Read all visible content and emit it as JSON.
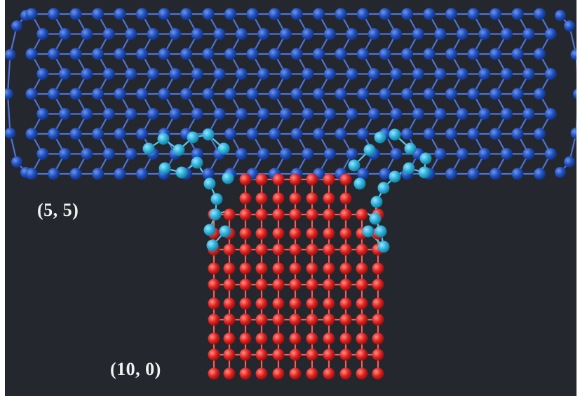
{
  "labels": {
    "armchair_tube": "(5, 5)",
    "zigzag_tube": "(10, 0)"
  },
  "colors": {
    "background": "#24272d",
    "frame": "#ffffff",
    "armchair_atoms": "#1f4fc0",
    "armchair_bonds": "#4f74d6",
    "junction_atoms": "#2bb0dc",
    "zigzag_atoms": "#e0201e",
    "zigzag_bonds": "#f0605a",
    "label_text": "#f2f2f2"
  },
  "icons": [
    "carbon-atom",
    "carbon-carbon-bond"
  ]
}
